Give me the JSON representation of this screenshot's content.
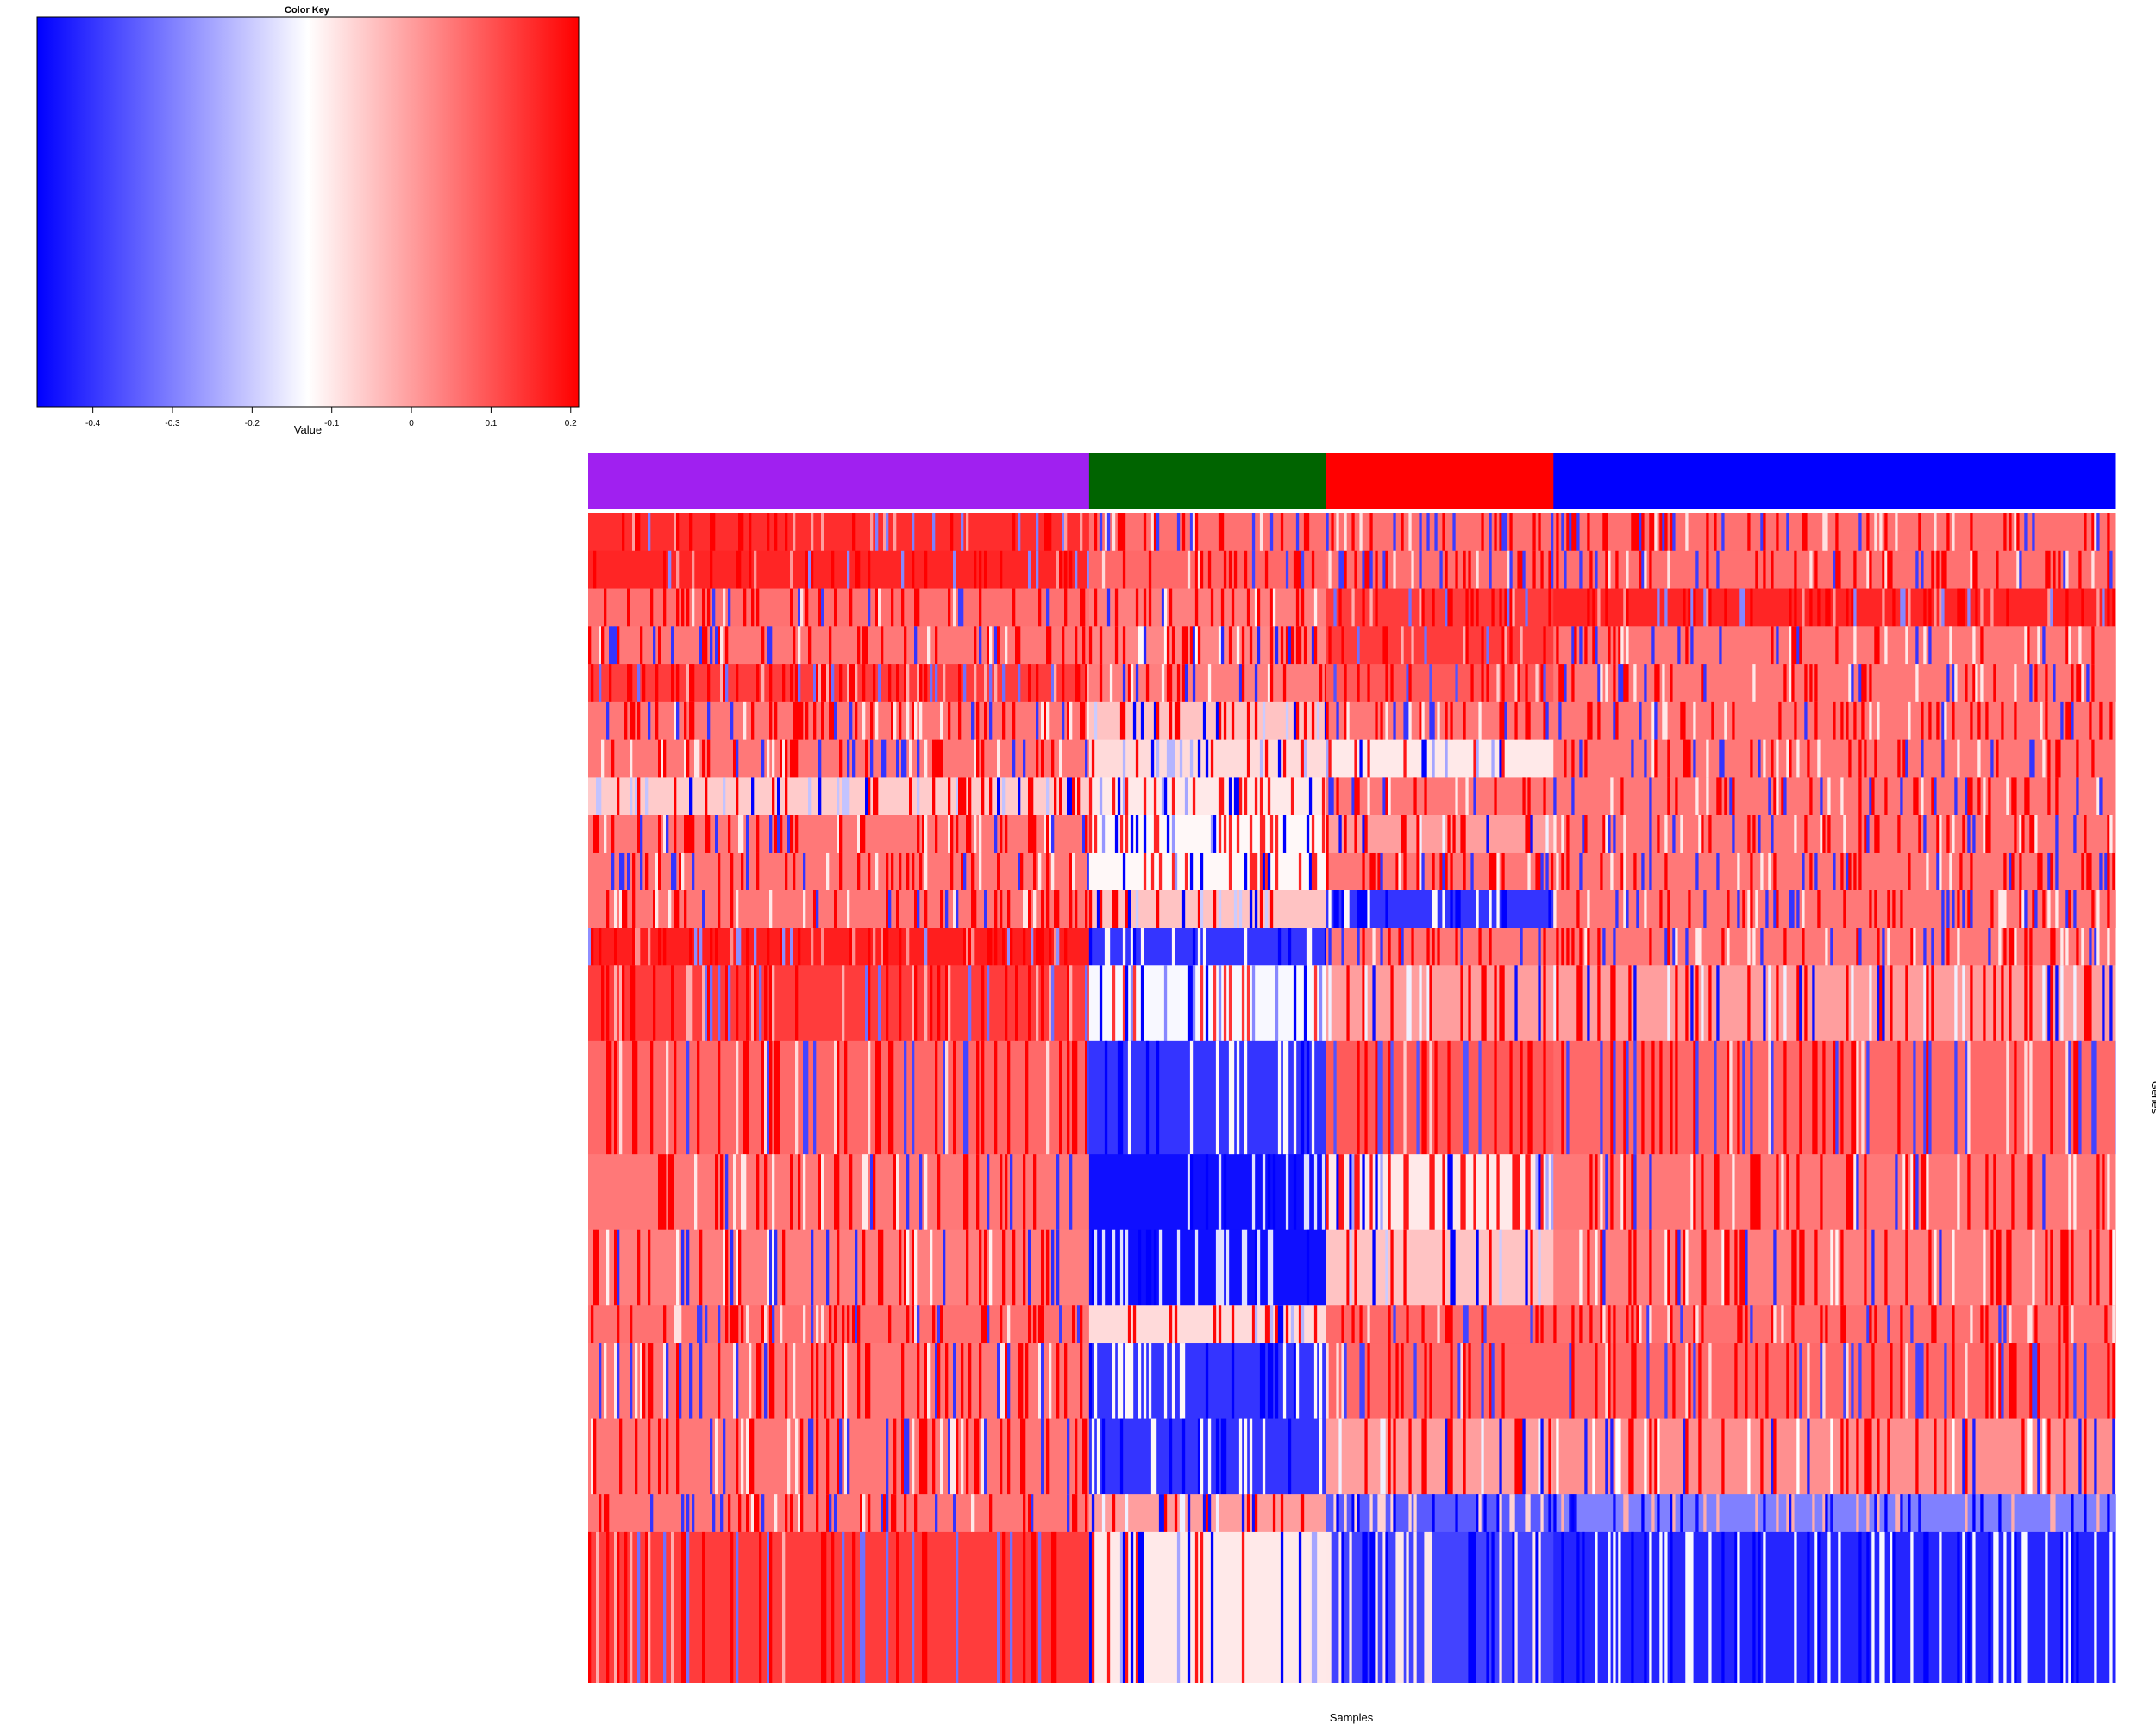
{
  "chart_data": {
    "type": "heatmap",
    "color_key": {
      "title": "Color Key",
      "xlabel": "Value",
      "range": [
        -0.47,
        0.21
      ],
      "ticks": [
        -0.4,
        -0.3,
        -0.2,
        -0.1,
        0,
        0.1,
        0.2
      ],
      "tick_labels": [
        "-0.4",
        "-0.3",
        "-0.2",
        "-0.1",
        "0",
        "0.1",
        "0.2"
      ],
      "colors": {
        "low": "#0000ff",
        "mid": "#ffffff",
        "high": "#ff0000"
      },
      "mid_value": -0.13
    },
    "xlabel": "Samples",
    "ylabel": "Genes",
    "column_groups": [
      {
        "color": "#a020f0",
        "fraction": 0.328
      },
      {
        "color": "#006400",
        "fraction": 0.155
      },
      {
        "color": "#ff0000",
        "fraction": 0.149
      },
      {
        "color": "#0000ff",
        "fraction": 0.368
      }
    ],
    "row_blocks": [
      {
        "rows": 1,
        "values": [
          0.15,
          0.06,
          0.06,
          0.06
        ]
      },
      {
        "rows": 1,
        "values": [
          0.16,
          0.07,
          0.06,
          0.06
        ]
      },
      {
        "rows": 1,
        "values": [
          0.06,
          0.04,
          0.13,
          0.16
        ]
      },
      {
        "rows": 1,
        "values": [
          0.05,
          0.03,
          0.13,
          0.05
        ]
      },
      {
        "rows": 1,
        "values": [
          0.13,
          0.04,
          0.09,
          0.05
        ]
      },
      {
        "rows": 1,
        "values": [
          0.05,
          -0.05,
          0.05,
          0.05
        ]
      },
      {
        "rows": 1,
        "values": [
          0.05,
          -0.08,
          -0.1,
          0.05
        ]
      },
      {
        "rows": 1,
        "values": [
          -0.06,
          -0.1,
          0.05,
          0.05
        ]
      },
      {
        "rows": 1,
        "values": [
          0.05,
          -0.12,
          0.0,
          0.05
        ]
      },
      {
        "rows": 1,
        "values": [
          0.05,
          -0.12,
          0.05,
          0.05
        ]
      },
      {
        "rows": 1,
        "values": [
          0.05,
          -0.05,
          -0.4,
          0.05
        ]
      },
      {
        "rows": 1,
        "values": [
          0.17,
          -0.4,
          0.05,
          0.05
        ]
      },
      {
        "rows": 2,
        "values": [
          0.13,
          -0.14,
          0.0,
          0.0
        ]
      },
      {
        "rows": 3,
        "values": [
          0.07,
          -0.4,
          0.09,
          0.07
        ]
      },
      {
        "rows": 2,
        "values": [
          0.05,
          -0.45,
          -0.1,
          0.05
        ]
      },
      {
        "rows": 2,
        "values": [
          0.04,
          -0.45,
          -0.05,
          0.04
        ]
      },
      {
        "rows": 1,
        "values": [
          0.06,
          -0.08,
          0.07,
          0.06
        ]
      },
      {
        "rows": 2,
        "values": [
          0.05,
          -0.4,
          0.07,
          0.07
        ]
      },
      {
        "rows": 2,
        "values": [
          0.05,
          -0.4,
          0.0,
          0.02
        ]
      },
      {
        "rows": 1,
        "values": [
          0.05,
          0.0,
          -0.35,
          -0.3
        ]
      },
      {
        "rows": 4,
        "values": [
          0.13,
          -0.1,
          -0.38,
          -0.42
        ]
      }
    ]
  }
}
